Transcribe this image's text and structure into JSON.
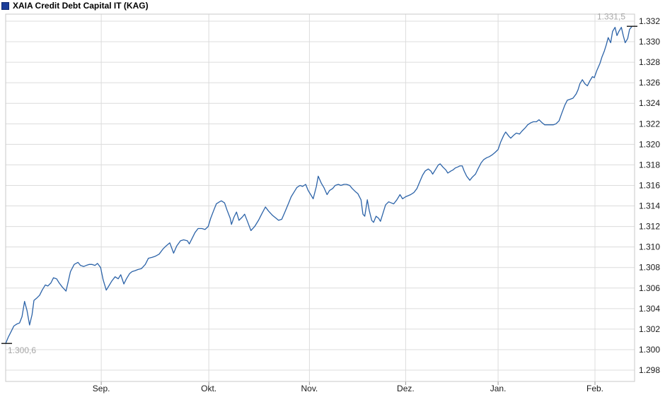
{
  "header": {
    "title": "XAIA Credit Debt Capital IT (KAG)"
  },
  "chart_data": {
    "type": "line",
    "title": "XAIA Credit Debt Capital IT (KAG)",
    "xlabel": "",
    "ylabel": "",
    "grid": true,
    "legend_position": "top-left",
    "ylim": [
      1297,
      1332.7
    ],
    "y_ticks": [
      {
        "v": 1332,
        "label": "1.332"
      },
      {
        "v": 1330,
        "label": "1.330"
      },
      {
        "v": 1328,
        "label": "1.328"
      },
      {
        "v": 1326,
        "label": "1.326"
      },
      {
        "v": 1324,
        "label": "1.324"
      },
      {
        "v": 1322,
        "label": "1.322"
      },
      {
        "v": 1320,
        "label": "1.320"
      },
      {
        "v": 1318,
        "label": "1.318"
      },
      {
        "v": 1316,
        "label": "1.316"
      },
      {
        "v": 1314,
        "label": "1.314"
      },
      {
        "v": 1312,
        "label": "1.312"
      },
      {
        "v": 1310,
        "label": "1.310"
      },
      {
        "v": 1308,
        "label": "1.308"
      },
      {
        "v": 1306,
        "label": "1.306"
      },
      {
        "v": 1304,
        "label": "1.304"
      },
      {
        "v": 1302,
        "label": "1.302"
      },
      {
        "v": 1300,
        "label": "1.300"
      },
      {
        "v": 1298,
        "label": "1.298"
      }
    ],
    "x_ticks": [
      {
        "f": 0.152,
        "label": "Sep."
      },
      {
        "f": 0.323,
        "label": "Okt."
      },
      {
        "f": 0.483,
        "label": "Nov."
      },
      {
        "f": 0.636,
        "label": "Dez."
      },
      {
        "f": 0.783,
        "label": "Jan."
      },
      {
        "f": 0.937,
        "label": "Feb."
      }
    ],
    "first_value": 1300.6,
    "first_value_label": "1.300,6",
    "last_value": 1331.5,
    "last_value_label": "1.331,5",
    "colors": {
      "line": "#2c63a8",
      "grid": "#dcdcdc",
      "border": "#c9c9c9",
      "legend_marker": "#1a3d99",
      "value_label_gray": "#a6a6a6",
      "tick_text": "#1a1a1a",
      "edge_marker": "#222222"
    },
    "series": [
      {
        "name": "XAIA Credit Debt Capital IT (KAG)",
        "points": [
          [
            0.0,
            1300.6
          ],
          [
            0.004,
            1301.2
          ],
          [
            0.009,
            1301.8
          ],
          [
            0.013,
            1302.3
          ],
          [
            0.018,
            1302.5
          ],
          [
            0.022,
            1302.6
          ],
          [
            0.026,
            1303.2
          ],
          [
            0.03,
            1304.7
          ],
          [
            0.034,
            1303.8
          ],
          [
            0.038,
            1302.4
          ],
          [
            0.042,
            1303.4
          ],
          [
            0.045,
            1304.8
          ],
          [
            0.049,
            1305.0
          ],
          [
            0.054,
            1305.3
          ],
          [
            0.058,
            1305.8
          ],
          [
            0.063,
            1306.3
          ],
          [
            0.067,
            1306.2
          ],
          [
            0.072,
            1306.5
          ],
          [
            0.076,
            1307.0
          ],
          [
            0.081,
            1306.9
          ],
          [
            0.085,
            1306.5
          ],
          [
            0.09,
            1306.1
          ],
          [
            0.096,
            1305.7
          ],
          [
            0.099,
            1306.5
          ],
          [
            0.103,
            1307.6
          ],
          [
            0.109,
            1308.3
          ],
          [
            0.115,
            1308.5
          ],
          [
            0.119,
            1308.2
          ],
          [
            0.124,
            1308.1
          ],
          [
            0.128,
            1308.2
          ],
          [
            0.133,
            1308.3
          ],
          [
            0.137,
            1308.3
          ],
          [
            0.142,
            1308.2
          ],
          [
            0.146,
            1308.4
          ],
          [
            0.151,
            1308.0
          ],
          [
            0.155,
            1306.8
          ],
          [
            0.16,
            1305.8
          ],
          [
            0.164,
            1306.2
          ],
          [
            0.169,
            1306.7
          ],
          [
            0.174,
            1307.1
          ],
          [
            0.179,
            1306.9
          ],
          [
            0.183,
            1307.3
          ],
          [
            0.188,
            1306.4
          ],
          [
            0.192,
            1306.9
          ],
          [
            0.197,
            1307.4
          ],
          [
            0.201,
            1307.6
          ],
          [
            0.206,
            1307.7
          ],
          [
            0.21,
            1307.8
          ],
          [
            0.216,
            1307.9
          ],
          [
            0.222,
            1308.3
          ],
          [
            0.227,
            1308.9
          ],
          [
            0.233,
            1309.0
          ],
          [
            0.238,
            1309.1
          ],
          [
            0.244,
            1309.3
          ],
          [
            0.25,
            1309.8
          ],
          [
            0.255,
            1310.1
          ],
          [
            0.261,
            1310.4
          ],
          [
            0.267,
            1309.4
          ],
          [
            0.272,
            1310.1
          ],
          [
            0.278,
            1310.6
          ],
          [
            0.283,
            1310.7
          ],
          [
            0.289,
            1310.6
          ],
          [
            0.292,
            1310.3
          ],
          [
            0.297,
            1310.9
          ],
          [
            0.301,
            1311.4
          ],
          [
            0.306,
            1311.8
          ],
          [
            0.312,
            1311.8
          ],
          [
            0.317,
            1311.7
          ],
          [
            0.322,
            1312.0
          ],
          [
            0.326,
            1312.8
          ],
          [
            0.331,
            1313.6
          ],
          [
            0.335,
            1314.2
          ],
          [
            0.34,
            1314.4
          ],
          [
            0.343,
            1314.5
          ],
          [
            0.348,
            1314.3
          ],
          [
            0.352,
            1313.6
          ],
          [
            0.357,
            1312.8
          ],
          [
            0.359,
            1312.2
          ],
          [
            0.363,
            1312.9
          ],
          [
            0.367,
            1313.4
          ],
          [
            0.371,
            1312.6
          ],
          [
            0.376,
            1312.9
          ],
          [
            0.38,
            1313.2
          ],
          [
            0.385,
            1312.4
          ],
          [
            0.39,
            1311.6
          ],
          [
            0.396,
            1312.0
          ],
          [
            0.402,
            1312.6
          ],
          [
            0.407,
            1313.2
          ],
          [
            0.413,
            1313.9
          ],
          [
            0.418,
            1313.5
          ],
          [
            0.424,
            1313.1
          ],
          [
            0.43,
            1312.8
          ],
          [
            0.434,
            1312.6
          ],
          [
            0.439,
            1312.7
          ],
          [
            0.444,
            1313.4
          ],
          [
            0.45,
            1314.3
          ],
          [
            0.454,
            1314.9
          ],
          [
            0.459,
            1315.4
          ],
          [
            0.463,
            1315.8
          ],
          [
            0.468,
            1316.0
          ],
          [
            0.472,
            1315.9
          ],
          [
            0.477,
            1316.1
          ],
          [
            0.481,
            1315.5
          ],
          [
            0.486,
            1315.0
          ],
          [
            0.489,
            1314.7
          ],
          [
            0.494,
            1315.9
          ],
          [
            0.497,
            1316.9
          ],
          [
            0.502,
            1316.2
          ],
          [
            0.506,
            1315.8
          ],
          [
            0.511,
            1315.1
          ],
          [
            0.515,
            1315.5
          ],
          [
            0.52,
            1315.7
          ],
          [
            0.524,
            1316.0
          ],
          [
            0.529,
            1316.1
          ],
          [
            0.533,
            1316.0
          ],
          [
            0.538,
            1316.1
          ],
          [
            0.542,
            1316.1
          ],
          [
            0.547,
            1316.0
          ],
          [
            0.551,
            1315.7
          ],
          [
            0.556,
            1315.4
          ],
          [
            0.56,
            1315.2
          ],
          [
            0.565,
            1314.6
          ],
          [
            0.568,
            1313.2
          ],
          [
            0.571,
            1313.0
          ],
          [
            0.575,
            1314.6
          ],
          [
            0.578,
            1313.6
          ],
          [
            0.582,
            1312.6
          ],
          [
            0.585,
            1312.4
          ],
          [
            0.589,
            1313.0
          ],
          [
            0.593,
            1312.8
          ],
          [
            0.596,
            1312.5
          ],
          [
            0.601,
            1313.5
          ],
          [
            0.604,
            1314.1
          ],
          [
            0.609,
            1314.4
          ],
          [
            0.613,
            1314.3
          ],
          [
            0.617,
            1314.2
          ],
          [
            0.622,
            1314.6
          ],
          [
            0.627,
            1315.1
          ],
          [
            0.631,
            1314.7
          ],
          [
            0.636,
            1314.9
          ],
          [
            0.64,
            1315.0
          ],
          [
            0.644,
            1315.1
          ],
          [
            0.649,
            1315.3
          ],
          [
            0.654,
            1315.7
          ],
          [
            0.658,
            1316.3
          ],
          [
            0.663,
            1317.0
          ],
          [
            0.667,
            1317.4
          ],
          [
            0.672,
            1317.6
          ],
          [
            0.676,
            1317.4
          ],
          [
            0.679,
            1317.1
          ],
          [
            0.684,
            1317.6
          ],
          [
            0.688,
            1318.0
          ],
          [
            0.691,
            1318.1
          ],
          [
            0.695,
            1317.8
          ],
          [
            0.7,
            1317.5
          ],
          [
            0.703,
            1317.2
          ],
          [
            0.708,
            1317.4
          ],
          [
            0.711,
            1317.5
          ],
          [
            0.715,
            1317.7
          ],
          [
            0.719,
            1317.8
          ],
          [
            0.722,
            1317.9
          ],
          [
            0.726,
            1317.9
          ],
          [
            0.729,
            1317.4
          ],
          [
            0.733,
            1316.9
          ],
          [
            0.738,
            1316.5
          ],
          [
            0.742,
            1316.8
          ],
          [
            0.747,
            1317.1
          ],
          [
            0.751,
            1317.6
          ],
          [
            0.756,
            1318.2
          ],
          [
            0.76,
            1318.5
          ],
          [
            0.765,
            1318.7
          ],
          [
            0.769,
            1318.8
          ],
          [
            0.774,
            1319.0
          ],
          [
            0.778,
            1319.2
          ],
          [
            0.783,
            1319.5
          ],
          [
            0.787,
            1320.2
          ],
          [
            0.792,
            1320.9
          ],
          [
            0.795,
            1321.2
          ],
          [
            0.8,
            1320.8
          ],
          [
            0.803,
            1320.6
          ],
          [
            0.808,
            1320.9
          ],
          [
            0.812,
            1321.1
          ],
          [
            0.817,
            1321.0
          ],
          [
            0.821,
            1321.3
          ],
          [
            0.826,
            1321.6
          ],
          [
            0.83,
            1321.9
          ],
          [
            0.835,
            1322.1
          ],
          [
            0.839,
            1322.2
          ],
          [
            0.844,
            1322.2
          ],
          [
            0.848,
            1322.4
          ],
          [
            0.853,
            1322.1
          ],
          [
            0.857,
            1321.9
          ],
          [
            0.862,
            1321.9
          ],
          [
            0.866,
            1321.9
          ],
          [
            0.871,
            1321.9
          ],
          [
            0.875,
            1322.0
          ],
          [
            0.88,
            1322.3
          ],
          [
            0.884,
            1323.0
          ],
          [
            0.889,
            1323.8
          ],
          [
            0.893,
            1324.3
          ],
          [
            0.898,
            1324.4
          ],
          [
            0.902,
            1324.5
          ],
          [
            0.907,
            1324.9
          ],
          [
            0.91,
            1325.3
          ],
          [
            0.913,
            1325.9
          ],
          [
            0.917,
            1326.3
          ],
          [
            0.921,
            1325.9
          ],
          [
            0.925,
            1325.7
          ],
          [
            0.929,
            1326.2
          ],
          [
            0.933,
            1326.6
          ],
          [
            0.936,
            1326.5
          ],
          [
            0.94,
            1327.2
          ],
          [
            0.945,
            1327.9
          ],
          [
            0.948,
            1328.5
          ],
          [
            0.952,
            1329.1
          ],
          [
            0.955,
            1329.7
          ],
          [
            0.958,
            1330.4
          ],
          [
            0.962,
            1329.9
          ],
          [
            0.965,
            1331.0
          ],
          [
            0.969,
            1331.4
          ],
          [
            0.972,
            1330.6
          ],
          [
            0.975,
            1331.0
          ],
          [
            0.979,
            1331.4
          ],
          [
            0.982,
            1330.6
          ],
          [
            0.985,
            1329.9
          ],
          [
            0.989,
            1330.3
          ],
          [
            0.992,
            1331.2
          ],
          [
            0.996,
            1331.5
          ],
          [
            1.0,
            1331.5
          ]
        ]
      }
    ]
  }
}
